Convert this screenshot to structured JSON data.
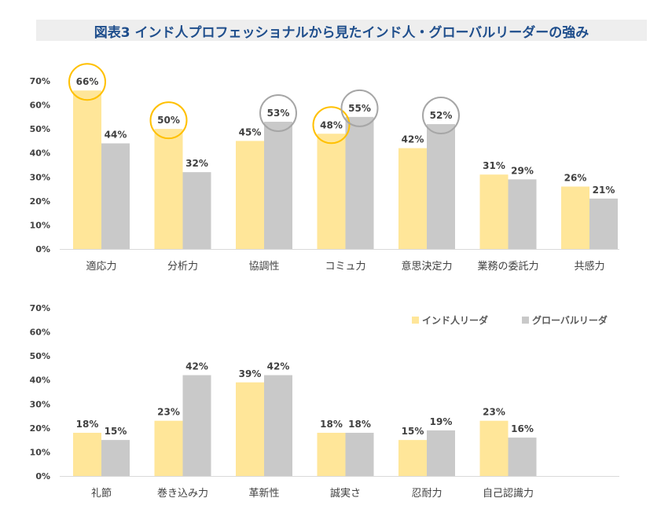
{
  "title": "図表3 インド人プロフェッショナルから見たインド人・グローバルリーダーの強み",
  "colors": {
    "indian": "#ffe699",
    "global": "#c9c9c9",
    "circle_yellow": "#ffc000",
    "circle_gray": "#a6a6a6"
  },
  "chart_data": [
    {
      "type": "bar",
      "categories": [
        "適応力",
        "分析力",
        "協調性",
        "コミュ力",
        "意思決定力",
        "業務の委託力",
        "共感力"
      ],
      "series": [
        {
          "name": "インド人リーダ",
          "values": [
            66,
            50,
            45,
            48,
            42,
            31,
            26
          ]
        },
        {
          "name": "グローバルリーダ",
          "values": [
            44,
            32,
            53,
            55,
            52,
            29,
            21
          ]
        }
      ],
      "ylim": [
        0,
        70
      ],
      "yticks": [
        "0%",
        "10%",
        "20%",
        "30%",
        "40%",
        "50%",
        "60%",
        "70%"
      ],
      "value_suffix": "%",
      "highlight_circles": [
        {
          "category": 0,
          "series": 0
        },
        {
          "category": 1,
          "series": 0
        },
        {
          "category": 2,
          "series": 1
        },
        {
          "category": 3,
          "series": 0
        },
        {
          "category": 3,
          "series": 1
        },
        {
          "category": 4,
          "series": 1
        }
      ]
    },
    {
      "type": "bar",
      "categories": [
        "礼節",
        "巻き込み力",
        "革新性",
        "誠実さ",
        "忍耐力",
        "自己認識力"
      ],
      "series": [
        {
          "name": "インド人リーダ",
          "values": [
            18,
            23,
            39,
            18,
            15,
            23
          ]
        },
        {
          "name": "グローバルリーダ",
          "values": [
            15,
            42,
            42,
            18,
            19,
            16
          ]
        }
      ],
      "ylim": [
        0,
        70
      ],
      "yticks": [
        "0%",
        "10%",
        "20%",
        "30%",
        "40%",
        "50%",
        "60%",
        "70%"
      ],
      "value_suffix": "%",
      "legend_position": "top-right"
    }
  ]
}
